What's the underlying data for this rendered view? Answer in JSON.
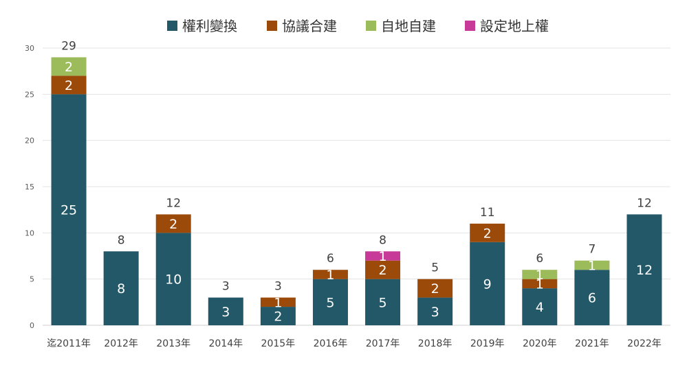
{
  "chart_data": {
    "type": "bar",
    "stacked": true,
    "categories": [
      "迄2011年",
      "2012年",
      "2013年",
      "2014年",
      "2015年",
      "2016年",
      "2017年",
      "2018年",
      "2019年",
      "2020年",
      "2021年",
      "2022年"
    ],
    "series": [
      {
        "name": "權利變換",
        "color": "#235868",
        "values": [
          25,
          8,
          10,
          3,
          2,
          5,
          5,
          3,
          9,
          4,
          6,
          12
        ]
      },
      {
        "name": "協議合建",
        "color": "#9c4a0a",
        "values": [
          2,
          0,
          2,
          0,
          1,
          1,
          2,
          2,
          2,
          1,
          0,
          0
        ]
      },
      {
        "name": "自地自建",
        "color": "#9cbb5a",
        "values": [
          2,
          0,
          0,
          0,
          0,
          0,
          0,
          0,
          0,
          1,
          1,
          0
        ]
      },
      {
        "name": "設定地上權",
        "color": "#c73a98",
        "values": [
          0,
          0,
          0,
          0,
          0,
          0,
          1,
          0,
          0,
          0,
          0,
          0
        ]
      }
    ],
    "totals": [
      29,
      8,
      12,
      3,
      3,
      6,
      8,
      5,
      11,
      6,
      7,
      12
    ],
    "ylim": [
      0,
      30
    ],
    "yticks": [
      0,
      5,
      10,
      15,
      20,
      25,
      30
    ],
    "grid": true,
    "legend_position": "top-center",
    "title": "",
    "xlabel": "",
    "ylabel": ""
  }
}
